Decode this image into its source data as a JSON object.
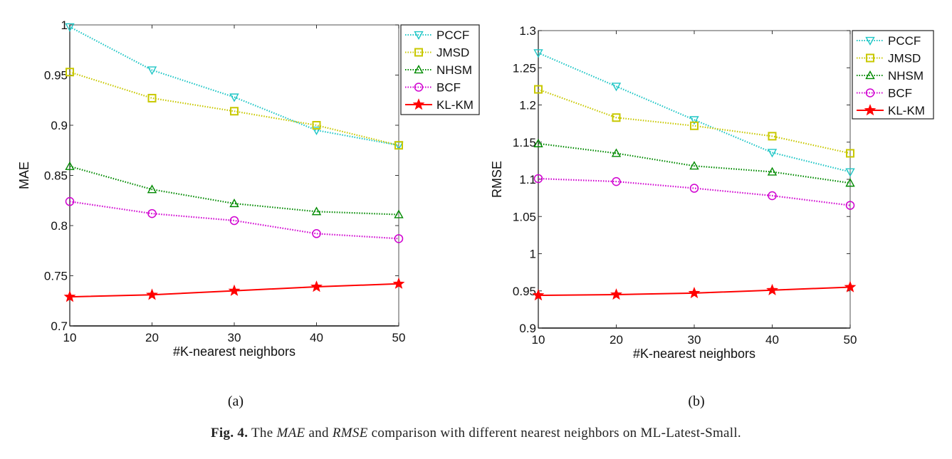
{
  "chart_data": [
    {
      "type": "line",
      "panel": "(a)",
      "title": "",
      "xlabel": "#K-nearest neighbors",
      "ylabel": "MAE",
      "xlim": [
        10,
        50
      ],
      "ylim": [
        0.7,
        1.0
      ],
      "x": [
        10,
        20,
        30,
        40,
        50
      ],
      "xticks": [
        "10",
        "20",
        "30",
        "40",
        "50"
      ],
      "yticks": [
        "0.7",
        "0.75",
        "0.8",
        "0.85",
        "0.9",
        "0.95",
        "1"
      ],
      "ytick_values": [
        0.7,
        0.75,
        0.8,
        0.85,
        0.9,
        0.95,
        1.0
      ],
      "grid": false,
      "legend_position": "outside-top-right",
      "series": [
        {
          "name": "PCCF",
          "color": "#1fc6c6",
          "marker": "triangle-down",
          "line": "dotted",
          "values": [
            0.998,
            0.955,
            0.928,
            0.895,
            0.88
          ]
        },
        {
          "name": "JMSD",
          "color": "#c8c800",
          "marker": "square",
          "line": "dotted",
          "values": [
            0.953,
            0.927,
            0.914,
            0.9,
            0.88
          ]
        },
        {
          "name": "NHSM",
          "color": "#008a00",
          "marker": "triangle-up",
          "line": "dotted",
          "values": [
            0.859,
            0.836,
            0.822,
            0.814,
            0.811
          ]
        },
        {
          "name": "BCF",
          "color": "#d000d0",
          "marker": "circle",
          "line": "dotted",
          "values": [
            0.824,
            0.812,
            0.805,
            0.792,
            0.787
          ]
        },
        {
          "name": "KL-KM",
          "color": "#ff0000",
          "marker": "star",
          "line": "solid",
          "values": [
            0.729,
            0.731,
            0.735,
            0.739,
            0.742
          ]
        }
      ]
    },
    {
      "type": "line",
      "panel": "(b)",
      "title": "",
      "xlabel": "#K-nearest neighbors",
      "ylabel": "RMSE",
      "xlim": [
        10,
        50
      ],
      "ylim": [
        0.9,
        1.3
      ],
      "x": [
        10,
        20,
        30,
        40,
        50
      ],
      "xticks": [
        "10",
        "20",
        "30",
        "40",
        "50"
      ],
      "yticks": [
        "0.9",
        "0.95",
        "1",
        "1.05",
        "1.1",
        "1.15",
        "1.2",
        "1.25",
        "1.3"
      ],
      "ytick_values": [
        0.9,
        0.95,
        1.0,
        1.05,
        1.1,
        1.15,
        1.2,
        1.25,
        1.3
      ],
      "grid": false,
      "legend_position": "outside-top-right",
      "series": [
        {
          "name": "PCCF",
          "color": "#1fc6c6",
          "marker": "triangle-down",
          "line": "dotted",
          "values": [
            1.27,
            1.225,
            1.18,
            1.136,
            1.11
          ]
        },
        {
          "name": "JMSD",
          "color": "#c8c800",
          "marker": "square",
          "line": "dotted",
          "values": [
            1.221,
            1.183,
            1.172,
            1.158,
            1.135
          ]
        },
        {
          "name": "NHSM",
          "color": "#008a00",
          "marker": "triangle-up",
          "line": "dotted",
          "values": [
            1.148,
            1.135,
            1.118,
            1.11,
            1.095
          ]
        },
        {
          "name": "BCF",
          "color": "#d000d0",
          "marker": "circle",
          "line": "dotted",
          "values": [
            1.101,
            1.097,
            1.088,
            1.078,
            1.065
          ]
        },
        {
          "name": "KL-KM",
          "color": "#ff0000",
          "marker": "star",
          "line": "solid",
          "values": [
            0.944,
            0.945,
            0.947,
            0.951,
            0.955
          ]
        }
      ]
    }
  ],
  "caption": {
    "prefix": "Fig. 4.",
    "text_1": " The ",
    "em_1": "MAE",
    "text_2": " and ",
    "em_2": "RMSE",
    "text_3": " comparison with different nearest neighbors on ML-Latest-Small."
  }
}
